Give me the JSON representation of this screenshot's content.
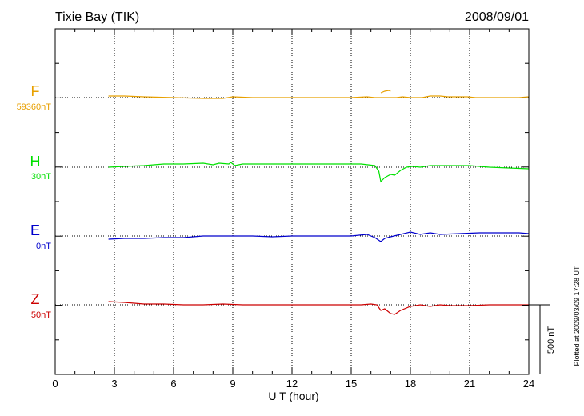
{
  "header": {
    "station": "Tixie Bay (TIK)",
    "date": "2008/09/01"
  },
  "footer_note": "Plotted at 2009/03/09 17:28 UT",
  "chart_data": {
    "type": "line",
    "title": "Tixie Bay (TIK)",
    "date": "2008/09/01",
    "xlabel": "U T (hour)",
    "xlim": [
      0,
      24
    ],
    "xticks": [
      0,
      3,
      6,
      9,
      12,
      15,
      18,
      21,
      24
    ],
    "grid": true,
    "scale_bar": {
      "label": "500 nT",
      "value_nT": 500
    },
    "nT_per_panel": 200,
    "colors": {
      "F": "#e8a000",
      "H": "#00e000",
      "E": "#0000cc",
      "Z": "#cc0000"
    },
    "series": [
      {
        "name": "F",
        "baseline_label": "59360nT",
        "color": "#e8a000",
        "points": [
          [
            2.7,
            -2
          ],
          [
            3.5,
            -2
          ],
          [
            4.5,
            -1
          ],
          [
            6,
            0
          ],
          [
            7.5,
            1
          ],
          [
            8.5,
            1
          ],
          [
            9,
            -1
          ],
          [
            10,
            0
          ],
          [
            12,
            0
          ],
          [
            13.5,
            0
          ],
          [
            15,
            0
          ],
          [
            15.8,
            -1
          ],
          [
            16.2,
            0
          ],
          [
            17.3,
            0
          ],
          [
            17.6,
            -1
          ],
          [
            18,
            0
          ],
          [
            18.6,
            0
          ],
          [
            19,
            -2
          ],
          [
            19.5,
            -2
          ],
          [
            19.9,
            -1
          ],
          [
            20.9,
            -1
          ],
          [
            21.3,
            0
          ],
          [
            22.5,
            0
          ],
          [
            23.5,
            0
          ],
          [
            24,
            -1
          ]
        ],
        "gaps": [
          [
            16.2,
            16.5
          ],
          [
            19.5,
            19.9
          ],
          [
            20.6,
            20.9
          ]
        ],
        "extra_segments": [
          [
            [
              16.5,
              -6
            ],
            [
              16.7,
              -8
            ],
            [
              16.9,
              -9
            ],
            [
              17.0,
              -8
            ]
          ]
        ]
      },
      {
        "name": "H",
        "baseline_label": "30nT",
        "color": "#00e000",
        "points": [
          [
            2.7,
            0
          ],
          [
            3.5,
            -1
          ],
          [
            4.5,
            -2
          ],
          [
            5.5,
            -4
          ],
          [
            6.5,
            -4
          ],
          [
            7.5,
            -5
          ],
          [
            8,
            -3
          ],
          [
            8.3,
            -5
          ],
          [
            8.8,
            -4
          ],
          [
            8.9,
            -6
          ],
          [
            9.1,
            -2
          ],
          [
            9.5,
            -4
          ],
          [
            10.5,
            -4
          ],
          [
            11.5,
            -4
          ],
          [
            12.5,
            -4
          ],
          [
            13.5,
            -4
          ],
          [
            14.5,
            -4
          ],
          [
            15.5,
            -4
          ],
          [
            16.2,
            -2
          ],
          [
            16.4,
            5
          ],
          [
            16.5,
            18
          ],
          [
            16.7,
            13
          ],
          [
            17.0,
            9
          ],
          [
            17.2,
            10
          ],
          [
            17.5,
            4
          ],
          [
            17.8,
            0
          ],
          [
            18.1,
            -1
          ],
          [
            18.5,
            0
          ],
          [
            19,
            -2
          ],
          [
            20,
            -2
          ],
          [
            21,
            -2
          ],
          [
            22,
            0
          ],
          [
            23,
            1
          ],
          [
            24,
            2
          ]
        ]
      },
      {
        "name": "E",
        "baseline_label": "0nT",
        "color": "#0000cc",
        "points": [
          [
            2.7,
            4
          ],
          [
            3.5,
            3
          ],
          [
            4.5,
            3
          ],
          [
            5.5,
            2
          ],
          [
            6.5,
            2
          ],
          [
            7.5,
            0
          ],
          [
            8.5,
            0
          ],
          [
            9.2,
            0
          ],
          [
            10,
            0
          ],
          [
            11,
            1
          ],
          [
            12,
            0
          ],
          [
            13,
            0
          ],
          [
            14,
            0
          ],
          [
            15,
            0
          ],
          [
            15.8,
            -2
          ],
          [
            16.2,
            2
          ],
          [
            16.5,
            7
          ],
          [
            16.7,
            3
          ],
          [
            17.0,
            1
          ],
          [
            17.5,
            -2
          ],
          [
            18,
            -5
          ],
          [
            18.5,
            -2
          ],
          [
            19,
            -4
          ],
          [
            19.5,
            -2
          ],
          [
            20.5,
            -3
          ],
          [
            21.5,
            -4
          ],
          [
            22.5,
            -4
          ],
          [
            23.5,
            -4
          ],
          [
            24,
            -3
          ]
        ]
      },
      {
        "name": "Z",
        "baseline_label": "50nT",
        "color": "#cc0000",
        "points": [
          [
            2.7,
            -4
          ],
          [
            3.5,
            -3
          ],
          [
            4.5,
            -1
          ],
          [
            5.5,
            -1
          ],
          [
            6.5,
            0
          ],
          [
            7.5,
            0
          ],
          [
            8.5,
            -1
          ],
          [
            9.5,
            0
          ],
          [
            10.5,
            0
          ],
          [
            11.5,
            0
          ],
          [
            12.5,
            0
          ],
          [
            13.5,
            0
          ],
          [
            14.5,
            0
          ],
          [
            15.5,
            0
          ],
          [
            16.0,
            -1
          ],
          [
            16.3,
            0
          ],
          [
            16.5,
            7
          ],
          [
            16.7,
            5
          ],
          [
            17.0,
            11
          ],
          [
            17.2,
            12
          ],
          [
            17.5,
            7
          ],
          [
            18,
            2
          ],
          [
            18.5,
            0
          ],
          [
            19,
            2
          ],
          [
            19.5,
            0
          ],
          [
            20,
            1
          ],
          [
            21,
            1
          ],
          [
            22,
            0
          ],
          [
            23,
            0
          ],
          [
            24,
            0
          ]
        ]
      }
    ]
  }
}
